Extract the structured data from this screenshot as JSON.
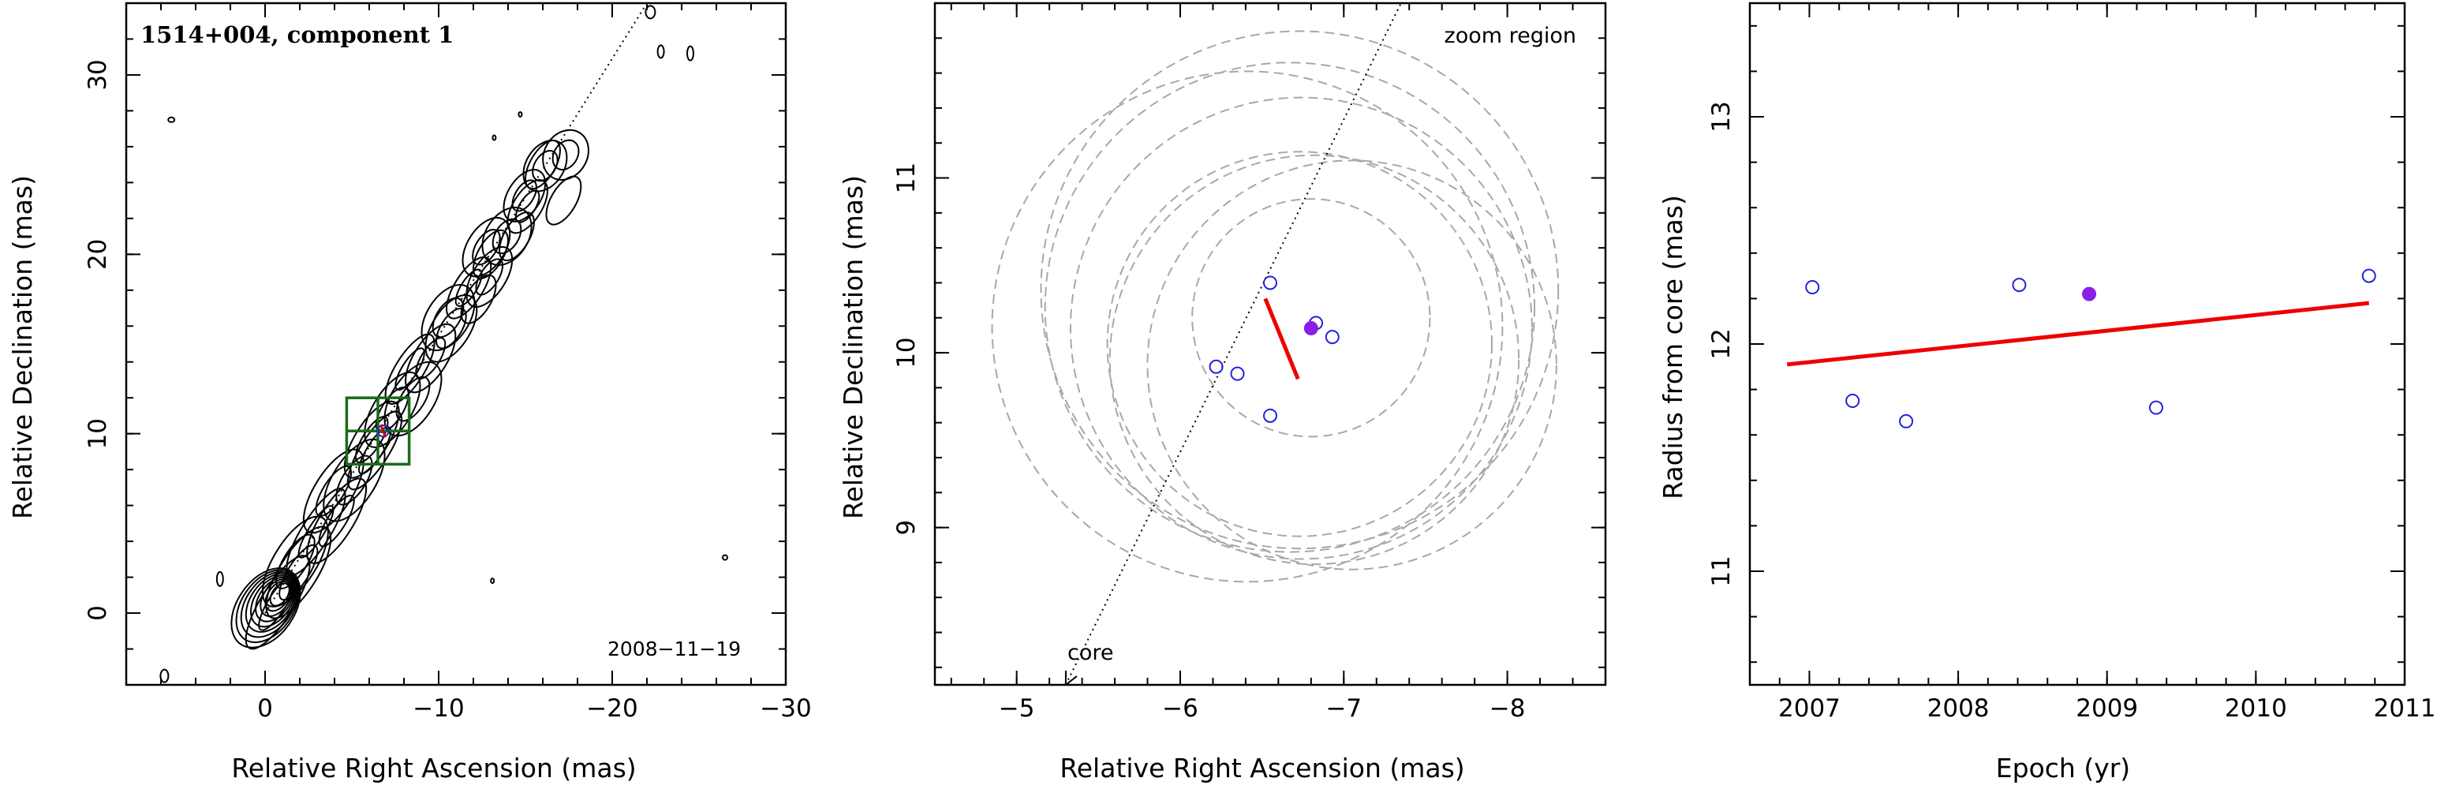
{
  "chart_data": [
    {
      "type": "contour",
      "title": "1514+004, component 1",
      "date_label": "2008−11−19",
      "xlabel": "Relative Right Ascension (mas)",
      "ylabel": "Relative Declination (mas)",
      "xlim": [
        8,
        -30
      ],
      "ylim": [
        -4,
        34
      ],
      "xticks": [
        0,
        -10,
        -20,
        -30
      ],
      "yticks": [
        0,
        10,
        20,
        30
      ],
      "jet_axis": [
        [
          0,
          0
        ],
        [
          -22,
          34
        ]
      ],
      "zoom_box": {
        "x_range": [
          -4.7,
          -8.3
        ],
        "y_range": [
          8.3,
          12.0
        ]
      },
      "component": {
        "x": -6.8,
        "y": 10.15
      }
    },
    {
      "type": "scatter",
      "xlabel": "Relative Right Ascension (mas)",
      "ylabel": "Relative Declination (mas)",
      "xlim": [
        -4.5,
        -8.6
      ],
      "ylim": [
        8.1,
        12.0
      ],
      "xticks": [
        -5,
        -6,
        -7,
        -8
      ],
      "yticks": [
        9,
        10,
        11
      ],
      "annotations": [
        "zoom region",
        "core"
      ],
      "open_points": [
        {
          "x": -6.55,
          "y": 10.4
        },
        {
          "x": -6.22,
          "y": 9.92
        },
        {
          "x": -6.35,
          "y": 9.88
        },
        {
          "x": -6.55,
          "y": 9.64
        },
        {
          "x": -6.83,
          "y": 10.17
        },
        {
          "x": -6.93,
          "y": 10.09
        }
      ],
      "filled_point": {
        "x": -6.8,
        "y": 10.14
      },
      "velocity_vector": [
        [
          -6.52,
          10.31
        ],
        [
          -6.72,
          9.85
        ]
      ],
      "beam_circles": [
        {
          "x": -6.8,
          "y": 10.2,
          "r": 0.68
        },
        {
          "x": -6.73,
          "y": 10.05,
          "r": 1.1
        },
        {
          "x": -6.82,
          "y": 9.96,
          "r": 1.17
        },
        {
          "x": -7.05,
          "y": 9.93,
          "r": 1.17
        },
        {
          "x": -6.74,
          "y": 10.14,
          "r": 1.32
        },
        {
          "x": -6.67,
          "y": 10.26,
          "r": 1.4
        },
        {
          "x": -6.41,
          "y": 10.15,
          "r": 1.46
        },
        {
          "x": -6.73,
          "y": 10.36,
          "r": 1.48
        }
      ],
      "jet_axis": [
        [
          -5.3,
          8.1
        ],
        [
          -7.35,
          12.0
        ]
      ]
    },
    {
      "type": "scatter",
      "xlabel": "Epoch (yr)",
      "ylabel": "Radius from core (mas)",
      "xlim": [
        2006.6,
        2011.0
      ],
      "ylim": [
        10.5,
        13.5
      ],
      "xticks": [
        2007,
        2008,
        2009,
        2010,
        2011
      ],
      "yticks": [
        11,
        12,
        13
      ],
      "open_points": [
        {
          "x": 2007.02,
          "y": 12.25
        },
        {
          "x": 2007.29,
          "y": 11.75
        },
        {
          "x": 2007.65,
          "y": 11.66
        },
        {
          "x": 2008.41,
          "y": 12.26
        },
        {
          "x": 2009.33,
          "y": 11.72
        },
        {
          "x": 2010.76,
          "y": 12.3
        }
      ],
      "filled_point": {
        "x": 2008.88,
        "y": 12.22
      },
      "fit_line": {
        "x": [
          2006.85,
          2010.76
        ],
        "y": [
          11.91,
          12.18
        ]
      }
    }
  ]
}
